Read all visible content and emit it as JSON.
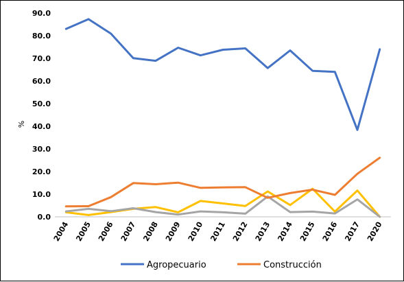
{
  "chart_data": {
    "type": "line",
    "x": [
      "2004",
      "2005",
      "2006",
      "2007",
      "2008",
      "2009",
      "2010",
      "2011",
      "2012",
      "2013",
      "2014",
      "2015",
      "2016",
      "2017",
      "2020"
    ],
    "ylabel": "%",
    "ylim": [
      0,
      90
    ],
    "yticks": [
      "0.0",
      "10.0",
      "20.0",
      "30.0",
      "40.0",
      "50.0",
      "60.0",
      "70.0",
      "80.0",
      "90.0"
    ],
    "grid": false,
    "legend_position": "bottom",
    "series": [
      {
        "name": "Agropecuario",
        "color": "#4472C4",
        "values": [
          83.0,
          87.3,
          80.9,
          70.1,
          68.9,
          74.7,
          71.3,
          73.8,
          74.4,
          65.7,
          73.5,
          64.5,
          64.0,
          38.4,
          74.0
        ]
      },
      {
        "name": "Construcción",
        "color": "#ED7D31",
        "values": [
          4.6,
          4.7,
          8.7,
          14.9,
          14.4,
          15.1,
          12.8,
          13.0,
          13.1,
          8.4,
          10.5,
          12.0,
          9.7,
          19.0,
          26.1
        ]
      },
      {
        "name": "",
        "color": "#A5A5A5",
        "values": [
          2.4,
          3.5,
          2.5,
          3.8,
          2.1,
          1.0,
          2.4,
          2.0,
          1.4,
          9.0,
          2.1,
          2.3,
          1.5,
          7.7,
          0.0
        ]
      },
      {
        "name": "",
        "color": "#FFC000",
        "values": [
          2.0,
          0.8,
          2.1,
          3.5,
          4.3,
          2.0,
          7.0,
          5.9,
          4.8,
          11.2,
          5.2,
          12.4,
          2.3,
          11.6,
          0.0
        ]
      }
    ]
  }
}
